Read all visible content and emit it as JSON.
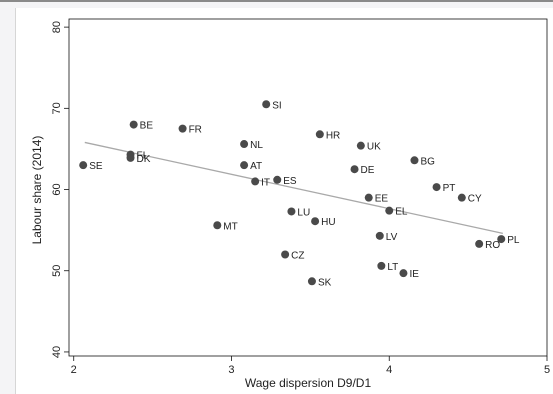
{
  "chart_data": {
    "type": "scatter",
    "title": "",
    "xlabel": "Wage dispersion D9/D1",
    "ylabel": "Labour share (2014)",
    "xlim": [
      1.97,
      5.0
    ],
    "ylim": [
      39.5,
      81.0
    ],
    "xticks": [
      2,
      3,
      4,
      5
    ],
    "yticks": [
      40,
      50,
      60,
      70,
      80
    ],
    "grid": false,
    "legend": "none",
    "marker_color": "#4a4a4a",
    "fit_line_color": "#a9a9a9",
    "fit_line": {
      "x": [
        2.07,
        4.72
      ],
      "y": [
        65.8,
        54.6
      ]
    },
    "points": [
      {
        "label": "SE",
        "x": 2.06,
        "y": 63.0
      },
      {
        "label": "FI",
        "x": 2.36,
        "y": 64.3
      },
      {
        "label": "DK",
        "x": 2.36,
        "y": 63.9
      },
      {
        "label": "BE",
        "x": 2.38,
        "y": 68.0
      },
      {
        "label": "FR",
        "x": 2.69,
        "y": 67.5
      },
      {
        "label": "MT",
        "x": 2.91,
        "y": 55.6
      },
      {
        "label": "NL",
        "x": 3.08,
        "y": 65.6
      },
      {
        "label": "AT",
        "x": 3.08,
        "y": 63.0
      },
      {
        "label": "IT",
        "x": 3.15,
        "y": 61.0
      },
      {
        "label": "SI",
        "x": 3.22,
        "y": 70.5
      },
      {
        "label": "ES",
        "x": 3.29,
        "y": 61.2
      },
      {
        "label": "CZ",
        "x": 3.34,
        "y": 52.0
      },
      {
        "label": "LU",
        "x": 3.38,
        "y": 57.3
      },
      {
        "label": "SK",
        "x": 3.51,
        "y": 48.7
      },
      {
        "label": "HU",
        "x": 3.53,
        "y": 56.1
      },
      {
        "label": "HR",
        "x": 3.56,
        "y": 66.8
      },
      {
        "label": "DE",
        "x": 3.78,
        "y": 62.5
      },
      {
        "label": "UK",
        "x": 3.82,
        "y": 65.4
      },
      {
        "label": "EE",
        "x": 3.87,
        "y": 59.0
      },
      {
        "label": "LV",
        "x": 3.94,
        "y": 54.3
      },
      {
        "label": "LT",
        "x": 3.95,
        "y": 50.6
      },
      {
        "label": "EL",
        "x": 4.0,
        "y": 57.4
      },
      {
        "label": "IE",
        "x": 4.09,
        "y": 49.7
      },
      {
        "label": "BG",
        "x": 4.16,
        "y": 63.6
      },
      {
        "label": "PT",
        "x": 4.3,
        "y": 60.3
      },
      {
        "label": "CY",
        "x": 4.46,
        "y": 59.0
      },
      {
        "label": "RO",
        "x": 4.57,
        "y": 53.3
      },
      {
        "label": "PL",
        "x": 4.71,
        "y": 53.9
      }
    ]
  }
}
